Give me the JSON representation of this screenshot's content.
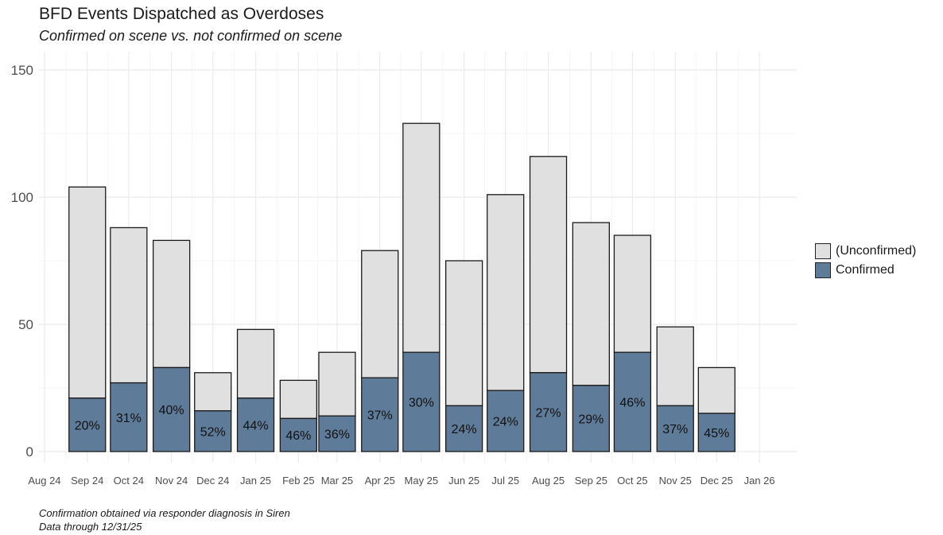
{
  "title": "BFD Events Dispatched as Overdoses",
  "subtitle": "Confirmed on scene vs. not confirmed on scene",
  "captions": [
    "Confirmation obtained via responder diagnosis in Siren",
    "Data through 12/31/25"
  ],
  "legend": {
    "unconfirmed": "(Unconfirmed)",
    "confirmed": "Confirmed"
  },
  "colors": {
    "unconfirmed": "#e0e0e0",
    "confirmed": "#5f7b9a",
    "grid": "#ebebeb",
    "outline": "#1a1a1a"
  },
  "chart_data": {
    "type": "bar",
    "stacked": true,
    "x_axis_type": "date",
    "x_tick_labels": [
      "Aug 24",
      "Sep 24",
      "Oct 24",
      "Nov 24",
      "Dec 24",
      "Jan 25",
      "Feb 25",
      "Mar 25",
      "Apr 25",
      "May 25",
      "Jun 25",
      "Jul 25",
      "Aug 25",
      "Sep 25",
      "Oct 25",
      "Nov 25",
      "Dec 25",
      "Jan 26"
    ],
    "x_tick_dates": [
      "2024-08-01",
      "2024-09-01",
      "2024-10-01",
      "2024-11-01",
      "2024-12-01",
      "2025-01-01",
      "2025-02-01",
      "2025-03-01",
      "2025-04-01",
      "2025-05-01",
      "2025-06-01",
      "2025-07-01",
      "2025-08-01",
      "2025-09-01",
      "2025-10-01",
      "2025-11-01",
      "2025-12-01",
      "2026-01-01"
    ],
    "x_range": [
      "2024-07-28",
      "2026-01-28"
    ],
    "bars": [
      {
        "month": "2024-09-01",
        "total": 104,
        "confirmed": 21,
        "label": "20%"
      },
      {
        "month": "2024-10-01",
        "total": 88,
        "confirmed": 27,
        "label": "31%"
      },
      {
        "month": "2024-11-01",
        "total": 83,
        "confirmed": 33,
        "label": "40%"
      },
      {
        "month": "2024-12-01",
        "total": 31,
        "confirmed": 16,
        "label": "52%"
      },
      {
        "month": "2025-01-01",
        "total": 48,
        "confirmed": 21,
        "label": "44%"
      },
      {
        "month": "2025-02-01",
        "total": 28,
        "confirmed": 13,
        "label": "46%"
      },
      {
        "month": "2025-03-01",
        "total": 39,
        "confirmed": 14,
        "label": "36%"
      },
      {
        "month": "2025-04-01",
        "total": 79,
        "confirmed": 29,
        "label": "37%"
      },
      {
        "month": "2025-05-01",
        "total": 129,
        "confirmed": 39,
        "label": "30%"
      },
      {
        "month": "2025-06-01",
        "total": 75,
        "confirmed": 18,
        "label": "24%"
      },
      {
        "month": "2025-07-01",
        "total": 101,
        "confirmed": 24,
        "label": "24%"
      },
      {
        "month": "2025-08-01",
        "total": 116,
        "confirmed": 31,
        "label": "27%"
      },
      {
        "month": "2025-09-01",
        "total": 90,
        "confirmed": 26,
        "label": "29%"
      },
      {
        "month": "2025-10-01",
        "total": 85,
        "confirmed": 39,
        "label": "46%"
      },
      {
        "month": "2025-11-01",
        "total": 49,
        "confirmed": 18,
        "label": "37%"
      },
      {
        "month": "2025-12-01",
        "total": 33,
        "confirmed": 15,
        "label": "45%"
      }
    ],
    "series": [
      {
        "name": "(Unconfirmed)",
        "values": [
          83,
          61,
          50,
          15,
          27,
          15,
          25,
          50,
          90,
          57,
          77,
          85,
          64,
          46,
          31,
          18
        ]
      },
      {
        "name": "Confirmed",
        "values": [
          21,
          27,
          33,
          16,
          21,
          13,
          14,
          29,
          39,
          18,
          24,
          31,
          26,
          39,
          18,
          15
        ]
      }
    ],
    "y_ticks": [
      0,
      50,
      100,
      150
    ],
    "ylim": [
      0,
      150
    ],
    "grid": true,
    "legend_position": "right"
  }
}
